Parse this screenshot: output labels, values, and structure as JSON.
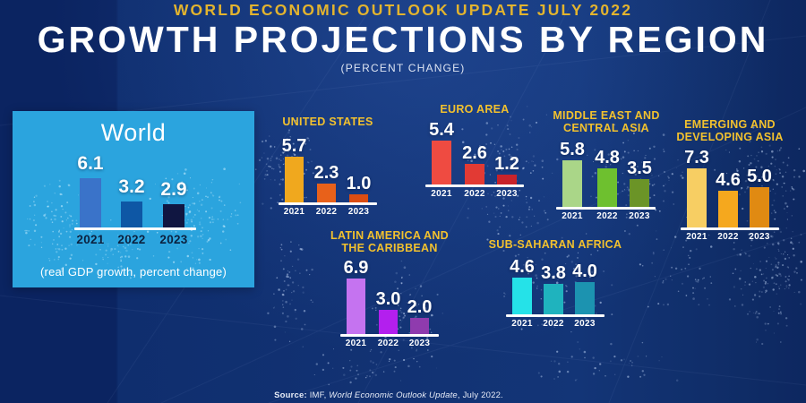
{
  "header": {
    "kicker": "WORLD ECONOMIC OUTLOOK UPDATE JULY 2022",
    "title": "GROWTH PROJECTIONS BY REGION",
    "subtitle": "(PERCENT CHANGE)"
  },
  "world_panel": {
    "title": "World",
    "caption": "(real GDP growth, percent change)",
    "bg_color": "#2BA4DE"
  },
  "source": {
    "prefix": "Source:",
    "body": "  IMF, ",
    "italic": "World Economic Outlook Update",
    "suffix": ", July 2022."
  },
  "colors": {
    "background_navy": "#0F2E6E",
    "gold_accent": "#E3B42E",
    "chart_title_gold": "#F2C12E",
    "value_text": "#FFFFFF",
    "world_year_text": "#0B2240"
  },
  "chart_data": [
    {
      "id": "world",
      "type": "bar",
      "region": "World",
      "title_lines": [],
      "categories": [
        "2021",
        "2022",
        "2023"
      ],
      "values": [
        6.1,
        3.2,
        2.9
      ],
      "bar_colors": [
        "#3A73C9",
        "#0E57A5",
        "#101641"
      ],
      "ylim": [
        0,
        8
      ]
    },
    {
      "id": "united-states",
      "type": "bar",
      "region": "United States",
      "title_lines": [
        "UNITED STATES"
      ],
      "categories": [
        "2021",
        "2022",
        "2023"
      ],
      "values": [
        5.7,
        2.3,
        1.0
      ],
      "bar_colors": [
        "#F0A81E",
        "#E8611A",
        "#DC4D12"
      ],
      "ylim": [
        0,
        8
      ]
    },
    {
      "id": "euro-area",
      "type": "bar",
      "region": "Euro Area",
      "title_lines": [
        "EURO AREA"
      ],
      "categories": [
        "2021",
        "2022",
        "2023"
      ],
      "values": [
        5.4,
        2.6,
        1.2
      ],
      "bar_colors": [
        "#EF4B41",
        "#E23A34",
        "#C8232B"
      ],
      "ylim": [
        0,
        8
      ]
    },
    {
      "id": "middle-east-central-asia",
      "type": "bar",
      "region": "Middle East and Central Asia",
      "title_lines": [
        "MIDDLE EAST AND",
        "CENTRAL ASIA"
      ],
      "categories": [
        "2021",
        "2022",
        "2023"
      ],
      "values": [
        5.8,
        4.8,
        3.5
      ],
      "bar_colors": [
        "#AAD688",
        "#6EC02F",
        "#6B9427"
      ],
      "ylim": [
        0,
        8
      ]
    },
    {
      "id": "emerging-developing-asia",
      "type": "bar",
      "region": "Emerging and Developing Asia",
      "title_lines": [
        "EMERGING AND",
        "DEVELOPING ASIA"
      ],
      "categories": [
        "2021",
        "2022",
        "2023"
      ],
      "values": [
        7.3,
        4.6,
        5.0
      ],
      "bar_colors": [
        "#F7CE63",
        "#F5A81E",
        "#E08A12"
      ],
      "ylim": [
        0,
        8
      ]
    },
    {
      "id": "latin-america-caribbean",
      "type": "bar",
      "region": "Latin America and the Caribbean",
      "title_lines": [
        "LATIN AMERICA AND",
        "THE CARIBBEAN"
      ],
      "categories": [
        "2021",
        "2022",
        "2023"
      ],
      "values": [
        6.9,
        3.0,
        2.0
      ],
      "bar_colors": [
        "#C573F0",
        "#B31FEE",
        "#8F3BAE"
      ],
      "ylim": [
        0,
        8
      ]
    },
    {
      "id": "sub-saharan-africa",
      "type": "bar",
      "region": "Sub-Saharan Africa",
      "title_lines": [
        "SUB-SAHARAN AFRICA"
      ],
      "categories": [
        "2021",
        "2022",
        "2023"
      ],
      "values": [
        4.6,
        3.8,
        4.0
      ],
      "bar_colors": [
        "#25E2E8",
        "#1FB3BE",
        "#1C93B0"
      ],
      "ylim": [
        0,
        8
      ]
    }
  ]
}
